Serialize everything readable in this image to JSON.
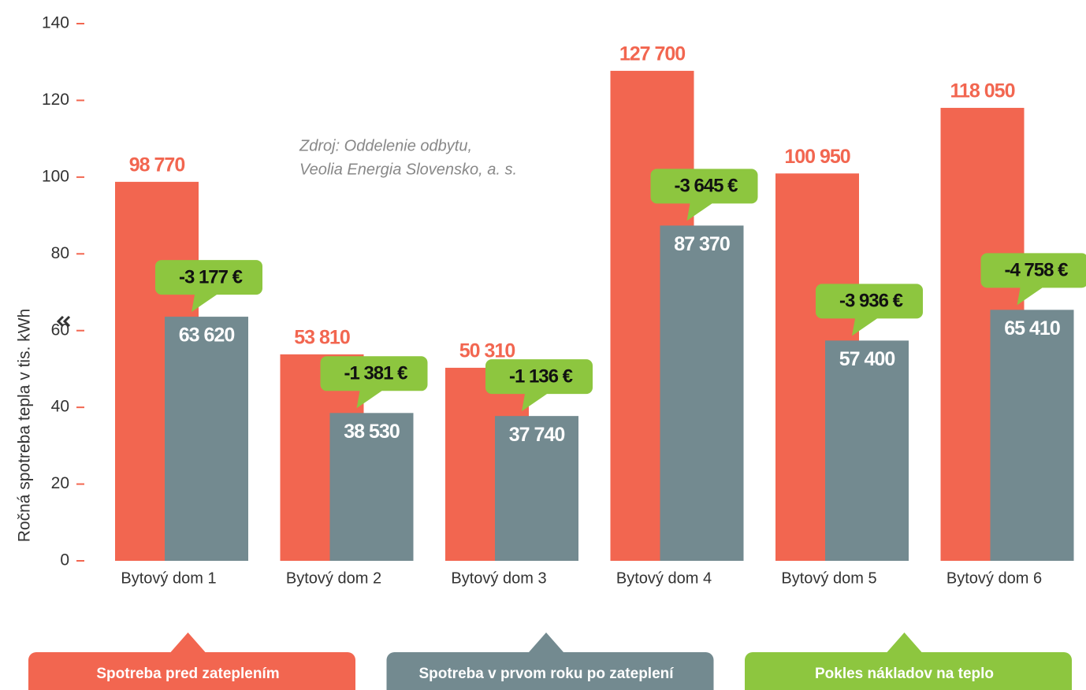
{
  "chart_data": {
    "type": "bar",
    "y_axis_label": "Ročná spotreba tepla v tis. kWh",
    "source_note": [
      "Zdroj: Oddelenie odbytu,",
      "Veolia Energia Slovensko, a. s."
    ],
    "categories": [
      "Bytový dom 1",
      "Bytový dom 2",
      "Bytový dom 3",
      "Bytový dom 4",
      "Bytový dom 5",
      "Bytový dom 6"
    ],
    "series": [
      {
        "name": "Spotreba pred zateplením",
        "color": "#f26650",
        "values": [
          98.77,
          53.81,
          50.31,
          127.7,
          100.95,
          118.05
        ],
        "value_labels": [
          "98 770",
          "53 810",
          "50 310",
          "127 700",
          "100 950",
          "118 050"
        ]
      },
      {
        "name": "Spotreba v prvom roku po zateplení",
        "color": "#738a90",
        "values": [
          63.62,
          38.53,
          37.74,
          87.37,
          57.4,
          65.41
        ],
        "value_labels": [
          "63 620",
          "38 530",
          "37 740",
          "87 370",
          "57 400",
          "65 410"
        ]
      }
    ],
    "savings": {
      "name": "Pokles nákladov na teplo",
      "color": "#8dc63f",
      "values": [
        -3177,
        -1381,
        -1136,
        -3645,
        -3936,
        -4758
      ],
      "value_labels": [
        "-3 177 €",
        "-1 381 €",
        "-1 136 €",
        "-3 645 €",
        "-3 936 €",
        "-4 758 €"
      ]
    },
    "ylim": [
      0,
      140
    ],
    "yticks": [
      0,
      20,
      40,
      60,
      80,
      100,
      120,
      140
    ],
    "tick_color": "#f26650"
  }
}
